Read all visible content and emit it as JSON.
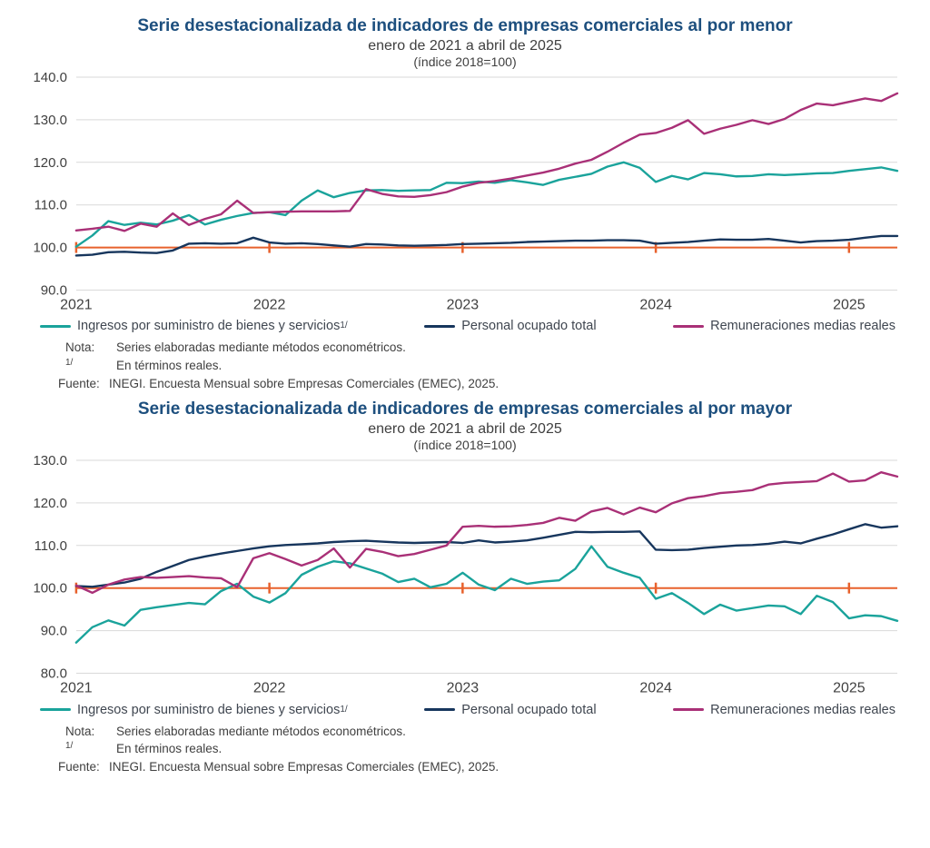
{
  "colors": {
    "title_blue": "#1d4f7e",
    "grid": "#d9d9d9",
    "axis_text": "#404040",
    "teal": "#1aa39b",
    "navy": "#17365d",
    "magenta": "#a93077",
    "orange": "#e8612c"
  },
  "charts": [
    {
      "title": "Serie desestacionalizada de indicadores de empresas comerciales al por menor",
      "subtitle": "enero de 2021 a abril de 2025",
      "index_note": "(índice 2018=100)",
      "legend": [
        {
          "label": "Ingresos por suministro de bienes y servicios",
          "sup": "1/"
        },
        {
          "label": "Personal ocupado total",
          "sup": ""
        },
        {
          "label": "Remuneraciones medias reales",
          "sup": ""
        }
      ],
      "notes": {
        "nota_label": "Nota:",
        "nota_text": "Series elaboradas mediante métodos econométricos.",
        "footnote_label": "1/",
        "footnote_text": "En términos reales.",
        "fuente_label": "Fuente:",
        "fuente_text": "INEGI. Encuesta Mensual sobre Empresas Comerciales (EMEC), 2025."
      }
    },
    {
      "title": "Serie desestacionalizada de indicadores de empresas comerciales al por mayor",
      "subtitle": "enero de 2021 a abril de 2025",
      "index_note": "(índice 2018=100)",
      "legend": [
        {
          "label": "Ingresos por suministro de bienes y servicios",
          "sup": "1/"
        },
        {
          "label": "Personal ocupado total",
          "sup": ""
        },
        {
          "label": "Remuneraciones medias reales",
          "sup": ""
        }
      ],
      "notes": {
        "nota_label": "Nota:",
        "nota_text": "Series elaboradas mediante métodos econométricos.",
        "footnote_label": "1/",
        "footnote_text": "En términos reales.",
        "fuente_label": "Fuente:",
        "fuente_text": "INEGI. Encuesta Mensual sobre Empresas Comerciales (EMEC), 2025."
      }
    }
  ],
  "chart_data": [
    {
      "type": "line",
      "title": "Serie desestacionalizada de indicadores de empresas comerciales al por menor",
      "x_start": "2021-01",
      "x_end": "2025-04",
      "x_tick_labels": [
        "2021",
        "2022",
        "2023",
        "2024",
        "2025"
      ],
      "x_tick_indices": [
        0,
        12,
        24,
        36,
        48
      ],
      "ylim": [
        90,
        140
      ],
      "y_tick_step": 10,
      "grid": true,
      "legend_position": "bottom",
      "reference_line": {
        "value": 100,
        "color": "#e8612c"
      },
      "series": [
        {
          "id": "ingresos",
          "name": "Ingresos por suministro de bienes y servicios",
          "color": "#1aa39b",
          "values": [
            100.2,
            102.8,
            106.2,
            105.3,
            105.8,
            105.4,
            106.3,
            107.6,
            105.4,
            106.5,
            107.4,
            108.1,
            108.3,
            107.6,
            111.0,
            113.4,
            111.8,
            112.8,
            113.4,
            113.5,
            113.3,
            113.4,
            113.5,
            115.2,
            115.1,
            115.5,
            115.2,
            115.8,
            115.3,
            114.7,
            115.9,
            116.6,
            117.3,
            119.0,
            120.0,
            118.7,
            115.4,
            116.8,
            116.0,
            117.5,
            117.2,
            116.7,
            116.8,
            117.2,
            117.0,
            117.2,
            117.4,
            117.5,
            118.0,
            118.4,
            118.8,
            118.0
          ]
        },
        {
          "id": "personal",
          "name": "Personal ocupado total",
          "color": "#17365d",
          "values": [
            98.1,
            98.3,
            98.9,
            99.0,
            98.8,
            98.7,
            99.3,
            100.9,
            101.0,
            100.9,
            101.0,
            102.3,
            101.2,
            100.9,
            101.0,
            100.8,
            100.5,
            100.2,
            100.8,
            100.7,
            100.5,
            100.4,
            100.5,
            100.6,
            100.8,
            100.9,
            101.0,
            101.1,
            101.3,
            101.4,
            101.5,
            101.6,
            101.6,
            101.7,
            101.7,
            101.6,
            100.9,
            101.1,
            101.3,
            101.6,
            101.9,
            101.8,
            101.8,
            102.0,
            101.6,
            101.2,
            101.5,
            101.6,
            101.8,
            102.3,
            102.7,
            102.7
          ]
        },
        {
          "id": "remuneraciones",
          "name": "Remuneraciones medias reales",
          "color": "#a93077",
          "values": [
            104.0,
            104.4,
            104.9,
            103.9,
            105.6,
            104.9,
            108.0,
            105.3,
            106.7,
            107.8,
            111.0,
            108.1,
            108.3,
            108.4,
            108.5,
            108.5,
            108.5,
            108.6,
            113.7,
            112.6,
            112.0,
            111.9,
            112.3,
            113.0,
            114.3,
            115.2,
            115.6,
            116.2,
            116.9,
            117.6,
            118.5,
            119.7,
            120.6,
            122.5,
            124.6,
            126.5,
            126.9,
            128.1,
            129.9,
            126.7,
            127.9,
            128.8,
            129.9,
            129.0,
            130.2,
            132.3,
            133.8,
            133.4,
            134.2,
            135.0,
            134.4,
            136.2
          ]
        }
      ]
    },
    {
      "type": "line",
      "title": "Serie desestacionalizada de indicadores de empresas comerciales al por mayor",
      "x_start": "2021-01",
      "x_end": "2025-04",
      "x_tick_labels": [
        "2021",
        "2022",
        "2023",
        "2024",
        "2025"
      ],
      "x_tick_indices": [
        0,
        12,
        24,
        36,
        48
      ],
      "ylim": [
        80,
        130
      ],
      "y_tick_step": 10,
      "grid": true,
      "legend_position": "bottom",
      "reference_line": {
        "value": 100,
        "color": "#e8612c"
      },
      "series": [
        {
          "id": "ingresos",
          "name": "Ingresos por suministro de bienes y servicios",
          "color": "#1aa39b",
          "values": [
            87.2,
            90.8,
            92.4,
            91.2,
            94.9,
            95.5,
            96.0,
            96.5,
            96.2,
            99.3,
            101.0,
            98.0,
            96.6,
            98.8,
            103.1,
            105.0,
            106.3,
            105.8,
            104.6,
            103.4,
            101.4,
            102.2,
            100.2,
            101.0,
            103.6,
            100.8,
            99.5,
            102.2,
            101.0,
            101.5,
            101.8,
            104.5,
            109.8,
            105.0,
            103.6,
            102.4,
            97.5,
            98.8,
            96.5,
            93.9,
            96.1,
            94.7,
            95.3,
            95.9,
            95.7,
            93.9,
            98.2,
            96.7,
            92.9,
            93.6,
            93.4,
            92.3
          ]
        },
        {
          "id": "personal",
          "name": "Personal ocupado total",
          "color": "#17365d",
          "values": [
            100.5,
            100.3,
            100.8,
            101.3,
            102.2,
            103.8,
            105.2,
            106.6,
            107.4,
            108.1,
            108.7,
            109.3,
            109.8,
            110.1,
            110.3,
            110.5,
            110.8,
            111.0,
            111.1,
            110.9,
            110.7,
            110.6,
            110.7,
            110.8,
            110.6,
            111.2,
            110.7,
            110.9,
            111.2,
            111.8,
            112.5,
            113.2,
            113.1,
            113.2,
            113.2,
            113.3,
            109.0,
            108.9,
            109.0,
            109.4,
            109.7,
            110.0,
            110.1,
            110.4,
            110.9,
            110.5,
            111.6,
            112.6,
            113.8,
            115.0,
            114.2,
            114.5
          ]
        },
        {
          "id": "remuneraciones",
          "name": "Remuneraciones medias reales",
          "color": "#a93077",
          "values": [
            100.6,
            98.9,
            100.8,
            102.0,
            102.6,
            102.4,
            102.6,
            102.8,
            102.5,
            102.3,
            100.2,
            107.0,
            108.2,
            106.8,
            105.3,
            106.6,
            109.3,
            104.8,
            109.2,
            108.5,
            107.5,
            108.0,
            109.0,
            110.0,
            114.4,
            114.6,
            114.4,
            114.5,
            114.8,
            115.3,
            116.5,
            115.8,
            118.0,
            118.8,
            117.3,
            118.9,
            117.8,
            119.9,
            121.1,
            121.6,
            122.3,
            122.6,
            123.0,
            124.3,
            124.7,
            124.9,
            125.1,
            126.9,
            125.0,
            125.3,
            127.2,
            126.2
          ]
        }
      ]
    }
  ]
}
